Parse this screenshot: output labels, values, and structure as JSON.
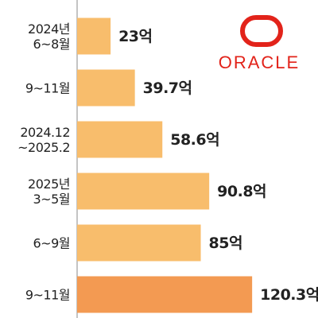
{
  "chart_data": {
    "type": "barh",
    "categories": [
      "2024년\n6~8월",
      "9~11월",
      "2024.12\n~2025.2",
      "2025년\n3~5월",
      "6~9월",
      "9~11월"
    ],
    "values": [
      23,
      39.7,
      58.6,
      90.8,
      85,
      120.3
    ],
    "value_labels": [
      "23억",
      "39.7억",
      "58.6억",
      "90.8억",
      "85억",
      "120.3억"
    ],
    "colors": [
      "#f8bd6c",
      "#f8bd6c",
      "#f8bd6c",
      "#f8bd6c",
      "#f8bd6c",
      "#f39a52"
    ]
  },
  "logo": "ORACLE"
}
